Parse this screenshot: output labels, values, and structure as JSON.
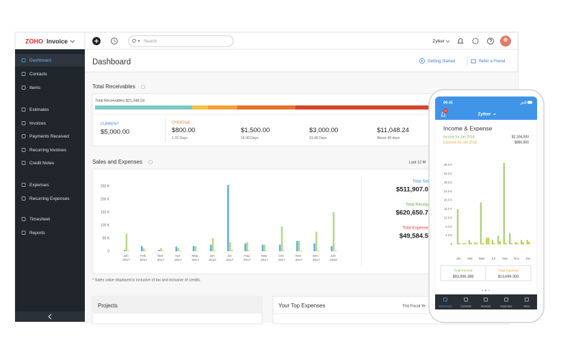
{
  "app": {
    "logo": "ZOHO",
    "product": "Invoice",
    "search_placeholder": "Search",
    "org": "Zylker"
  },
  "sidebar": {
    "items": [
      "Dashboard",
      "Contacts",
      "Items",
      "Estimates",
      "Invoices",
      "Payments Received",
      "Recurring Invoices",
      "Credit Notes",
      "Expenses",
      "Recurring Expenses",
      "Timesheet",
      "Reports"
    ],
    "active": 0
  },
  "header": {
    "title": "Dashboard",
    "links": [
      "Getting Started",
      "Refer a Friend"
    ]
  },
  "receivables": {
    "title": "Total Receivables",
    "total": "Total Receivables $21,348.24",
    "group_labels": [
      "CURRENT",
      "OVERDUE"
    ],
    "values": [
      5000,
      800,
      1500,
      3000,
      11048.24
    ],
    "value_labels": [
      "$5,000.00",
      "$800.00",
      "$1,500.00",
      "$3,000.00",
      "$11,048.24"
    ],
    "periods": [
      null,
      "1-15 Days",
      "16-30 Days",
      "31-45 Days",
      "Above 45 days"
    ],
    "colors": [
      "#7ec8c4",
      "#f6c244",
      "#f2a03a",
      "#e5732b",
      "#d4472a"
    ]
  },
  "chart_data": [
    {
      "type": "bar",
      "title": "Sales and Expenses",
      "period": "Last 12 M",
      "categories": [
        "Jan 2017",
        "Feb 2017",
        "Mar 2017",
        "Apr 2017",
        "May 2017",
        "Jun 2017",
        "Jul 2017",
        "Aug 2017",
        "Sep 2017",
        "Oct 2017",
        "Nov 2017",
        "Dec 2017",
        "Jan 2018"
      ],
      "series": [
        {
          "color": "#5fb0e3",
          "values": [
            5000,
            20000,
            5000,
            18000,
            20000,
            25000,
            255000,
            30000,
            25000,
            25000,
            40000,
            30000,
            20000
          ]
        },
        {
          "color": "#b3d98a",
          "values": [
            68000,
            12000,
            12000,
            12000,
            20000,
            50000,
            35000,
            35000,
            25000,
            95000,
            40000,
            75000,
            150000
          ]
        },
        {
          "color": "#f3c94e",
          "values": [
            3000,
            3000,
            2000,
            3000,
            2000,
            3000,
            5000,
            3000,
            3000,
            3000,
            3000,
            3000,
            3000
          ]
        }
      ],
      "ylim": [
        0,
        260000
      ],
      "yticks": [
        0,
        {
          "value": 50000,
          "label": "50 K"
        },
        {
          "value": 100000,
          "label": "100 K"
        },
        {
          "value": 150000,
          "label": "150 K"
        },
        {
          "value": 200000,
          "label": "200 K"
        },
        {
          "value": 250000,
          "label": "250 K"
        }
      ],
      "grid": false
    },
    {
      "type": "bar",
      "title": "Income & Expense",
      "categories": [
        "Jan",
        null,
        "Mar",
        null,
        "May",
        null,
        "Jul",
        null,
        "Sep",
        null,
        "Nov",
        null,
        "Jan"
      ],
      "series": [
        {
          "color": "#a9d273",
          "values": [
            16000,
            500,
            2000,
            1000,
            19000,
            3000,
            2000,
            4000,
            37000,
            5000,
            1000,
            2000,
            2000
          ]
        },
        {
          "color": "#f1c232",
          "values": [
            600,
            600,
            800,
            600,
            700,
            3000,
            600,
            1500,
            700,
            600,
            700,
            1000,
            1200
          ]
        }
      ],
      "ylim": [
        0,
        38000
      ],
      "yticks": [
        0,
        {
          "value": 4000,
          "label": "4.0 K"
        },
        {
          "value": 8000,
          "label": "8.0 K"
        },
        {
          "value": 12000,
          "label": "12.0 K"
        },
        {
          "value": 16000,
          "label": "16.0 K"
        },
        {
          "value": 20000,
          "label": "20.0 K"
        },
        {
          "value": 24000,
          "label": "24.0 K"
        },
        {
          "value": 28000,
          "label": "28.0 K"
        },
        {
          "value": 32000,
          "label": "32.0 K"
        },
        {
          "value": 36000,
          "label": "36.0 K"
        }
      ],
      "grid": false
    }
  ],
  "sales_totals": [
    {
      "label": "Total Sal",
      "value": "$511,907.0",
      "color": "#3a8fd6"
    },
    {
      "label": "Total Receip",
      "value": "$620,650.7",
      "color": "#6aae3c"
    },
    {
      "label": "Total Expense",
      "value": "$49,584.5",
      "color": "#d9453a"
    }
  ],
  "footnote": "* Sales value displayed is inclusive of tax and inclusive of credits.",
  "projects": {
    "title": "Projects"
  },
  "top_expenses": {
    "title": "Your Top Expenses",
    "period": "This Fiscal Ye"
  },
  "mobile": {
    "time": "09:41",
    "org": "Zylker",
    "badge": "10",
    "legend": [
      {
        "label": "Income for Jan 2018",
        "value": "$2,304,000",
        "color": "#7ab648"
      },
      {
        "label": "Expense for Jan 2018",
        "value": "$880,000",
        "color": "#e8a530"
      }
    ],
    "totals": [
      {
        "label": "Total Income",
        "value": "$93,996.388",
        "color": "#7ab648"
      },
      {
        "label": "Total Expense",
        "value": "$13,699.300",
        "color": "#e8a530"
      }
    ],
    "tabs": [
      "Dashboard",
      "Contacts",
      "Invoices",
      "Expenses",
      "More"
    ],
    "active_tab": 0
  }
}
